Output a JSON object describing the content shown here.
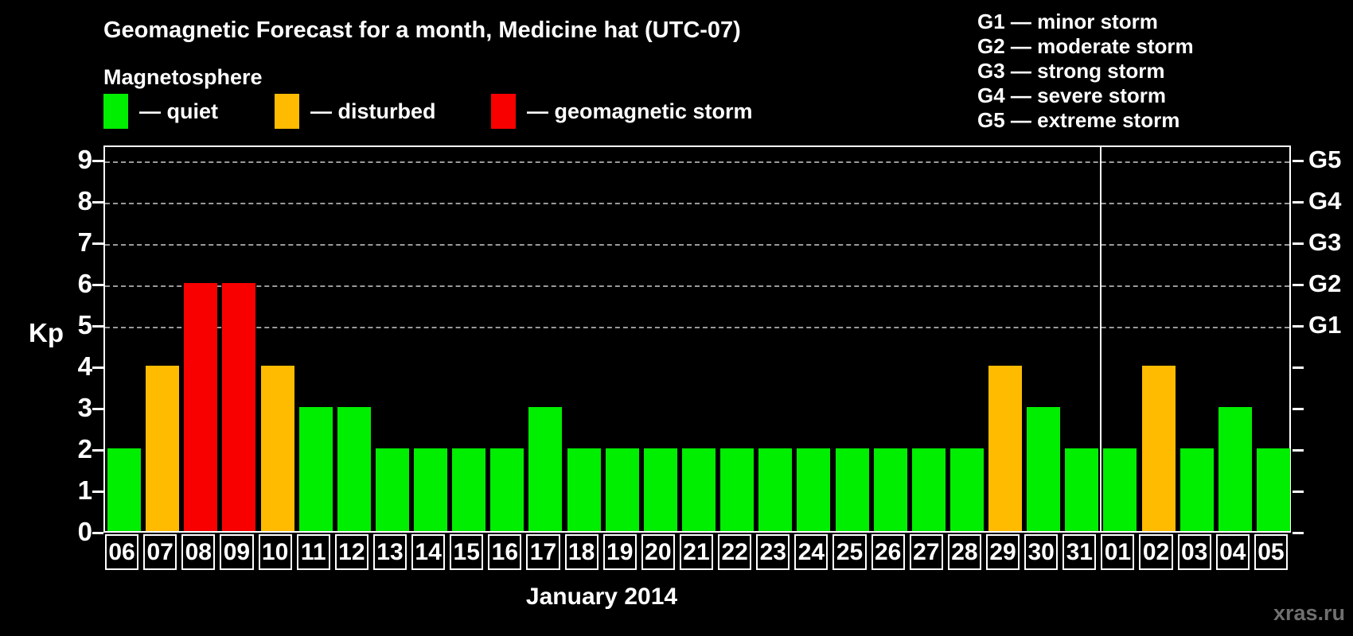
{
  "header": {
    "title": "Geomagnetic Forecast for a month, Medicine hat (UTC-07)",
    "subtitle": "Magnetosphere"
  },
  "legend": {
    "items": [
      {
        "name": "quiet",
        "label": "— quiet",
        "color": "#00ee00"
      },
      {
        "name": "disturbed",
        "label": "— disturbed",
        "color": "#ffbb00"
      },
      {
        "name": "storm",
        "label": "— geomagnetic storm",
        "color": "#f80000"
      }
    ]
  },
  "g_scale_legend": {
    "items": [
      "G1 — minor storm",
      "G2 — moderate storm",
      "G3 — strong storm",
      "G4 — severe storm",
      "G5 — extreme storm"
    ]
  },
  "chart_data": {
    "type": "bar",
    "title": "Geomagnetic Forecast for a month, Medicine hat (UTC-07)",
    "ylabel": "Kp",
    "xlabel": "January 2014",
    "ylim": [
      0,
      9.4
    ],
    "yticks": [
      0,
      1,
      2,
      3,
      4,
      5,
      6,
      7,
      8,
      9
    ],
    "gridlines_at": [
      5,
      6,
      7,
      8,
      9
    ],
    "grid_style": "dashed",
    "legend_position": "top",
    "right_axis_labels": [
      {
        "kp": 5,
        "label": "G1"
      },
      {
        "kp": 6,
        "label": "G2"
      },
      {
        "kp": 7,
        "label": "G3"
      },
      {
        "kp": 8,
        "label": "G4"
      },
      {
        "kp": 9,
        "label": "G5"
      }
    ],
    "categories": [
      "06",
      "07",
      "08",
      "09",
      "10",
      "11",
      "12",
      "13",
      "14",
      "15",
      "16",
      "17",
      "18",
      "19",
      "20",
      "21",
      "22",
      "23",
      "24",
      "25",
      "26",
      "27",
      "28",
      "29",
      "30",
      "31",
      "01",
      "02",
      "03",
      "04",
      "05"
    ],
    "values": [
      2,
      4,
      6,
      6,
      4,
      3,
      3,
      2,
      2,
      2,
      2,
      3,
      2,
      2,
      2,
      2,
      2,
      2,
      2,
      2,
      2,
      2,
      2,
      4,
      3,
      2,
      2,
      4,
      2,
      3,
      2
    ],
    "statuses": [
      "quiet",
      "disturbed",
      "storm",
      "storm",
      "disturbed",
      "quiet",
      "quiet",
      "quiet",
      "quiet",
      "quiet",
      "quiet",
      "quiet",
      "quiet",
      "quiet",
      "quiet",
      "quiet",
      "quiet",
      "quiet",
      "quiet",
      "quiet",
      "quiet",
      "quiet",
      "quiet",
      "disturbed",
      "quiet",
      "quiet",
      "quiet",
      "disturbed",
      "quiet",
      "quiet",
      "quiet"
    ],
    "status_colors": {
      "quiet": "#00ee00",
      "disturbed": "#ffbb00",
      "storm": "#f80000"
    },
    "month_boundary_after_index": 25,
    "month_label_span": [
      0,
      25
    ]
  },
  "watermark": "xras.ru"
}
